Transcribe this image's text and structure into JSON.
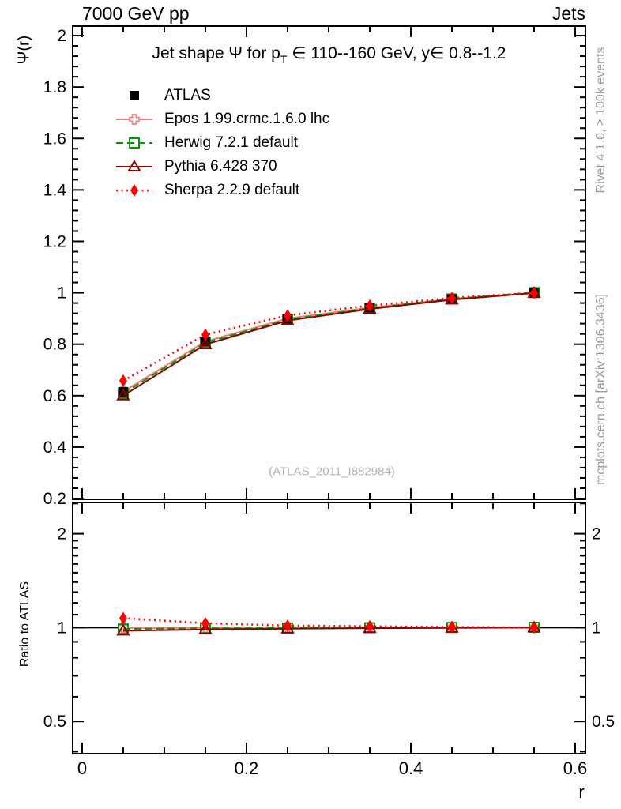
{
  "header": {
    "left": "7000 GeV pp",
    "right": "Jets"
  },
  "title_parts": [
    {
      "t": "Jet shape Ψ for p"
    },
    {
      "t": "T",
      "sub": true
    },
    {
      "t": " ∈ 110--160 GeV, y∈ 0.8--1.2"
    }
  ],
  "watermark": "(ATLAS_2011_I882984)",
  "side_notes": {
    "top": "Rivet 4.1.0, ≥ 100k events",
    "bottom": "mcplots.cern.ch [arXiv:1306.3436]"
  },
  "colors": {
    "atlas": "#000000",
    "epos": "#f08080",
    "herwig": "#009900",
    "pythia": "#8b0000",
    "sherpa": "#ff0000",
    "frame": "#000000",
    "note_gray": "#9a9a9a"
  },
  "chart_data": {
    "type": "line",
    "title": "Jet shape Ψ for pT ∈ 110--160 GeV, y ∈ 0.8--1.2",
    "xlabel": "r",
    "x": [
      0.05,
      0.15,
      0.25,
      0.35,
      0.45,
      0.55
    ],
    "xlim": [
      -0.0115,
      0.6125
    ],
    "xticks": {
      "major": [
        0,
        0.2,
        0.4,
        0.6
      ],
      "labels": [
        "0",
        "0.2",
        "0.4",
        "0.6"
      ],
      "minor_step": 0.05
    },
    "main_panel": {
      "ylabel": "Ψ(r)",
      "yscale": "linear",
      "ylim": [
        0.197,
        2.037
      ],
      "yticks": {
        "major": [
          0.2,
          0.4,
          0.6,
          0.8,
          1.0,
          1.2,
          1.4,
          1.6,
          1.8,
          2.0
        ],
        "labels": [
          "0.2",
          "0.4",
          "0.6",
          "0.8",
          "1",
          "1.2",
          "1.4",
          "1.6",
          "1.8",
          "2"
        ],
        "minor_step": 0.04
      },
      "grid": false
    },
    "ratio_panel": {
      "ylabel": "Ratio to ATLAS",
      "yscale": "log",
      "ylim": [
        0.394,
        2.52
      ],
      "yticks": {
        "major": [
          0.5,
          1,
          2
        ],
        "labels": [
          "0.5",
          "1",
          "2"
        ],
        "minor": [
          0.4,
          0.6,
          0.7,
          0.8,
          0.9,
          1.1,
          1.2,
          1.3,
          1.4,
          1.5,
          1.6,
          1.7,
          1.8,
          1.9,
          2.5
        ]
      },
      "reference_line": 1
    },
    "series": [
      {
        "name": "ATLAS",
        "color": "#000000",
        "line": "none",
        "marker": "filled-square",
        "values": [
          0.615,
          0.81,
          0.899,
          0.941,
          0.975,
          0.999
        ],
        "ratio": null
      },
      {
        "name": "Epos 1.99.crmc.1.6.0 lhc",
        "color": "#f08080",
        "line": "solid",
        "marker": "open-cross",
        "values": [
          0.616,
          0.811,
          0.9,
          0.942,
          0.976,
          1.0
        ],
        "ratio": [
          1.002,
          1.001,
          1.001,
          1.001,
          1.001,
          1.001
        ]
      },
      {
        "name": "Herwig 7.2.1 default",
        "color": "#009900",
        "line": "dashed",
        "marker": "open-square",
        "values": [
          0.609,
          0.806,
          0.896,
          0.94,
          0.976,
          1.001
        ],
        "ratio": [
          0.99,
          0.995,
          0.997,
          0.999,
          1.001,
          1.002
        ]
      },
      {
        "name": "Pythia 6.428 370",
        "color": "#8b0000",
        "line": "solid",
        "marker": "open-triangle",
        "values": [
          0.6,
          0.799,
          0.892,
          0.937,
          0.973,
          0.999
        ],
        "ratio": [
          0.977,
          0.986,
          0.992,
          0.996,
          0.998,
          1.0
        ]
      },
      {
        "name": "Sherpa 2.2.9 default",
        "color": "#ff0000",
        "line": "dotted",
        "marker": "filled-diamond",
        "values": [
          0.658,
          0.837,
          0.912,
          0.95,
          0.98,
          1.0
        ],
        "ratio": [
          1.072,
          1.033,
          1.015,
          1.01,
          1.005,
          1.001
        ]
      }
    ],
    "legend_position": "top-left-inside"
  }
}
